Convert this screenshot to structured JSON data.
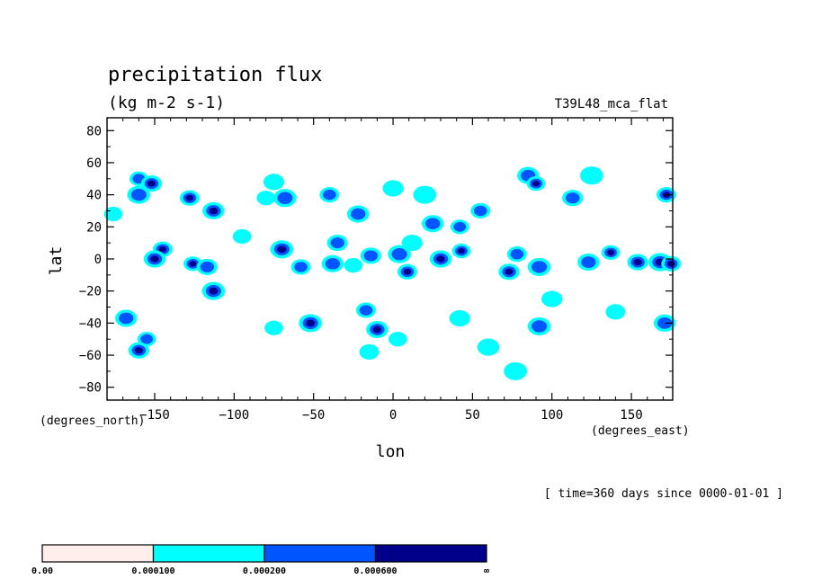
{
  "chart_data": {
    "type": "heatmap",
    "title": "precipitation flux",
    "subtitle": "(kg m-2 s-1)",
    "dataset_label": "T39L48_mca_flat",
    "xlabel": "lon",
    "ylabel": "lat",
    "x_unit": "(degrees_east)",
    "y_unit": "(degrees_north)",
    "xlim": [
      -180,
      176
    ],
    "ylim": [
      -88,
      88
    ],
    "x_ticks": [
      -150,
      -100,
      -50,
      0,
      50,
      100,
      150
    ],
    "x_tick_labels": [
      "−150",
      "−100",
      "−50",
      "0",
      "50",
      "100",
      "150"
    ],
    "y_ticks": [
      80,
      60,
      40,
      20,
      0,
      -20,
      -40,
      -60,
      -80
    ],
    "y_tick_labels": [
      "80",
      "60",
      "40",
      "20",
      "0",
      "−20",
      "−40",
      "−60",
      "−80"
    ],
    "time_label": "[ time=360 days since 0000-01-01 ]",
    "levels": [
      {
        "label": "0.00",
        "color": "#ffeeea"
      },
      {
        "label": "0.000100",
        "color": "#00ffff"
      },
      {
        "label": "0.000200",
        "color": "#0055ff"
      },
      {
        "label": "0.000600",
        "color": "#00008b"
      }
    ],
    "colorbar_end_label": "∞",
    "cells": [
      {
        "lon": -160,
        "lat": 50,
        "level": 2
      },
      {
        "lon": -152,
        "lat": 47,
        "level": 3
      },
      {
        "lon": -160,
        "lat": 40,
        "level": 2
      },
      {
        "lon": -128,
        "lat": 38,
        "level": 3
      },
      {
        "lon": -113,
        "lat": 30,
        "level": 3
      },
      {
        "lon": -176,
        "lat": 28,
        "level": 1
      },
      {
        "lon": -75,
        "lat": 48,
        "level": 1
      },
      {
        "lon": -68,
        "lat": 38,
        "level": 2
      },
      {
        "lon": -40,
        "lat": 40,
        "level": 2
      },
      {
        "lon": -22,
        "lat": 28,
        "level": 2
      },
      {
        "lon": -80,
        "lat": 38,
        "level": 1
      },
      {
        "lon": 0,
        "lat": 44,
        "level": 1
      },
      {
        "lon": 20,
        "lat": 40,
        "level": 1
      },
      {
        "lon": 55,
        "lat": 30,
        "level": 2
      },
      {
        "lon": 85,
        "lat": 52,
        "level": 2
      },
      {
        "lon": 90,
        "lat": 47,
        "level": 3
      },
      {
        "lon": 113,
        "lat": 38,
        "level": 2
      },
      {
        "lon": 125,
        "lat": 52,
        "level": 1
      },
      {
        "lon": 172,
        "lat": 40,
        "level": 3
      },
      {
        "lon": 25,
        "lat": 22,
        "level": 2
      },
      {
        "lon": 42,
        "lat": 20,
        "level": 2
      },
      {
        "lon": -35,
        "lat": 10,
        "level": 2
      },
      {
        "lon": -70,
        "lat": 6,
        "level": 3
      },
      {
        "lon": -145,
        "lat": 6,
        "level": 3
      },
      {
        "lon": -150,
        "lat": 0,
        "level": 3
      },
      {
        "lon": -126,
        "lat": -3,
        "level": 3
      },
      {
        "lon": -117,
        "lat": -5,
        "level": 2
      },
      {
        "lon": -113,
        "lat": -20,
        "level": 3
      },
      {
        "lon": -58,
        "lat": -5,
        "level": 2
      },
      {
        "lon": -38,
        "lat": -3,
        "level": 2
      },
      {
        "lon": -25,
        "lat": -4,
        "level": 1
      },
      {
        "lon": -14,
        "lat": 2,
        "level": 2
      },
      {
        "lon": 4,
        "lat": 3,
        "level": 2
      },
      {
        "lon": 9,
        "lat": -8,
        "level": 3
      },
      {
        "lon": 30,
        "lat": 0,
        "level": 3
      },
      {
        "lon": 43,
        "lat": 5,
        "level": 3
      },
      {
        "lon": 73,
        "lat": -8,
        "level": 3
      },
      {
        "lon": 92,
        "lat": -5,
        "level": 2
      },
      {
        "lon": 78,
        "lat": 3,
        "level": 2
      },
      {
        "lon": 123,
        "lat": -2,
        "level": 2
      },
      {
        "lon": 137,
        "lat": 4,
        "level": 3
      },
      {
        "lon": 154,
        "lat": -2,
        "level": 3
      },
      {
        "lon": 168,
        "lat": -2,
        "level": 3
      },
      {
        "lon": 175,
        "lat": -3,
        "level": 3
      },
      {
        "lon": -168,
        "lat": -37,
        "level": 2
      },
      {
        "lon": -155,
        "lat": -50,
        "level": 2
      },
      {
        "lon": -160,
        "lat": -57,
        "level": 3
      },
      {
        "lon": -52,
        "lat": -40,
        "level": 3
      },
      {
        "lon": -17,
        "lat": -32,
        "level": 2
      },
      {
        "lon": -10,
        "lat": -44,
        "level": 3
      },
      {
        "lon": 3,
        "lat": -50,
        "level": 1
      },
      {
        "lon": 42,
        "lat": -37,
        "level": 1
      },
      {
        "lon": 92,
        "lat": -42,
        "level": 2
      },
      {
        "lon": 140,
        "lat": -33,
        "level": 1
      },
      {
        "lon": 171,
        "lat": -40,
        "level": 2
      },
      {
        "lon": -75,
        "lat": -43,
        "level": 1
      },
      {
        "lon": 100,
        "lat": -25,
        "level": 1
      },
      {
        "lon": 77,
        "lat": -70,
        "level": 1
      },
      {
        "lon": -15,
        "lat": -58,
        "level": 1
      },
      {
        "lon": 60,
        "lat": -55,
        "level": 1
      },
      {
        "lon": -95,
        "lat": 14,
        "level": 1
      },
      {
        "lon": 12,
        "lat": 10,
        "level": 1
      }
    ]
  }
}
